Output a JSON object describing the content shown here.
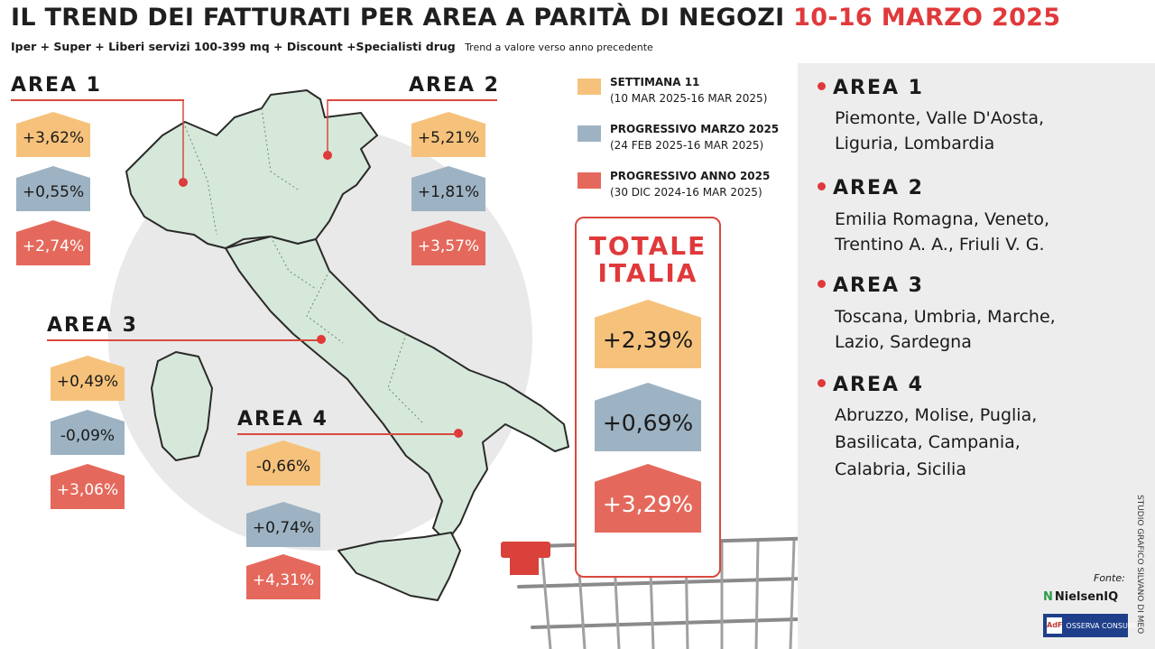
{
  "header": {
    "title_main": "IL TREND DEI FATTURATI PER AREA A PARITÀ DI NEGOZI",
    "title_dates": "10-16 MARZO 2025",
    "subtitle": "Iper + Super + Liberi servizi 100-399 mq + Discount +Specialisti drug",
    "subtitle_note": "Trend a valore verso anno precedente"
  },
  "legend": [
    {
      "title": "SETTIMANA 11",
      "dates": "(10 MAR 2025-16 MAR 2025)",
      "color": "#f6c27b"
    },
    {
      "title": "PROGRESSIVO MARZO 2025",
      "dates": "(24 FEB 2025-16 MAR 2025)",
      "color": "#9db3c3"
    },
    {
      "title": "PROGRESSIVO ANNO 2025",
      "dates": "(30 DIC 2024-16 MAR 2025)",
      "color": "#e4695c"
    }
  ],
  "chart_data": {
    "type": "table",
    "series": [
      {
        "name": "SETTIMANA 11",
        "color": "#f6c27b"
      },
      {
        "name": "PROGRESSIVO MARZO 2025",
        "color": "#9db3c3"
      },
      {
        "name": "PROGRESSIVO ANNO 2025",
        "color": "#e4695c"
      }
    ],
    "areas": [
      {
        "label": "AREA 1",
        "values": [
          "+3,62%",
          "+0,55%",
          "+2,74%"
        ]
      },
      {
        "label": "AREA 2",
        "values": [
          "+5,21%",
          "+1,81%",
          "+3,57%"
        ]
      },
      {
        "label": "AREA 3",
        "values": [
          "+0,49%",
          "-0,09%",
          "+3,06%"
        ]
      },
      {
        "label": "AREA 4",
        "values": [
          "-0,66%",
          "+0,74%",
          "+4,31%"
        ]
      }
    ],
    "totale": {
      "label_line1": "TOTALE",
      "label_line2": "ITALIA",
      "values": [
        "+2,39%",
        "+0,69%",
        "+3,29%"
      ]
    }
  },
  "regions": [
    {
      "head": "AREA 1",
      "lines": [
        "Piemonte, Valle D'Aosta,",
        "Liguria, Lombardia"
      ]
    },
    {
      "head": "AREA 2",
      "lines": [
        "Emilia Romagna, Veneto,",
        "Trentino A. A., Friuli V. G."
      ]
    },
    {
      "head": "AREA 3",
      "lines": [
        "Toscana, Umbria, Marche,",
        "Lazio, Sardegna"
      ]
    },
    {
      "head": "AREA 4",
      "lines": [
        "Abruzzo, Molise, Puglia,",
        "Basilicata, Campania,",
        "Calabria, Sicilia"
      ]
    }
  ],
  "footer": {
    "fonte": "Fonte:",
    "nielsen": "NielsenIQ",
    "nielsen_mark": "N",
    "osserva": "OSSERVA CONSUMI",
    "osserva_mark": "AdF",
    "credit": "STUDIO GRAFICO SILVANO DI MEO"
  }
}
